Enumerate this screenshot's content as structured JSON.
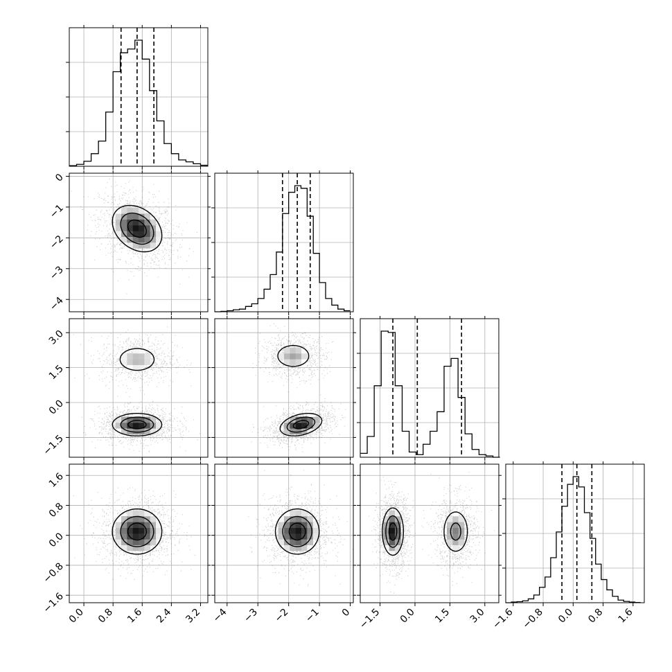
{
  "chart_data": {
    "type": "corner",
    "parameters": [
      {
        "axis_range": [
          -0.4,
          3.4
        ],
        "ticks": [
          0.0,
          0.8,
          1.6,
          2.4,
          3.2
        ],
        "tick_labels": [
          "0.0",
          "0.8",
          "1.6",
          "2.4",
          "3.2"
        ],
        "quantiles": [
          1.02,
          1.46,
          1.92
        ],
        "histogram": {
          "bin_edges": [
            -0.4,
            -0.2,
            0.0,
            0.2,
            0.4,
            0.6,
            0.8,
            1.0,
            1.2,
            1.4,
            1.6,
            1.8,
            2.0,
            2.2,
            2.4,
            2.6,
            2.8,
            3.0,
            3.2,
            3.4
          ],
          "values": [
            0.005,
            0.015,
            0.04,
            0.1,
            0.2,
            0.43,
            0.75,
            0.9,
            0.93,
            1.0,
            0.85,
            0.6,
            0.36,
            0.18,
            0.1,
            0.05,
            0.035,
            0.02,
            0.008
          ]
        }
      },
      {
        "axis_range": [
          -4.4,
          0.1
        ],
        "ticks": [
          -4,
          -3,
          -2,
          -1,
          0
        ],
        "tick_labels": [
          "−4",
          "−3",
          "−2",
          "−1",
          "0"
        ],
        "quantiles": [
          -2.2,
          -1.72,
          -1.3
        ],
        "histogram": {
          "bin_edges": [
            -4.4,
            -4.2,
            -4.0,
            -3.8,
            -3.6,
            -3.4,
            -3.2,
            -3.0,
            -2.8,
            -2.6,
            -2.4,
            -2.2,
            -2.0,
            -1.8,
            -1.6,
            -1.4,
            -1.2,
            -1.0,
            -0.8,
            -0.6,
            -0.4,
            -0.2,
            0.0
          ],
          "values": [
            0.0,
            0.003,
            0.008,
            0.015,
            0.02,
            0.04,
            0.06,
            0.1,
            0.17,
            0.28,
            0.45,
            0.74,
            0.9,
            0.95,
            0.93,
            0.72,
            0.44,
            0.22,
            0.1,
            0.05,
            0.02,
            0.008
          ]
        }
      },
      {
        "axis_range": [
          -2.35,
          3.6
        ],
        "ticks": [
          -1.5,
          0.0,
          1.5,
          3.0
        ],
        "tick_labels": [
          "−1.5",
          "0.0",
          "1.5",
          "3.0"
        ],
        "quantiles": [
          -0.95,
          0.1,
          2.0
        ],
        "histogram": {
          "bin_edges": [
            -2.35,
            -2.05,
            -1.75,
            -1.45,
            -1.15,
            -0.85,
            -0.55,
            -0.25,
            0.05,
            0.35,
            0.65,
            0.95,
            1.25,
            1.55,
            1.85,
            2.15,
            2.45,
            2.75,
            3.05,
            3.35,
            3.65
          ],
          "values": [
            0.03,
            0.16,
            0.55,
            0.97,
            0.96,
            0.55,
            0.2,
            0.04,
            0.02,
            0.1,
            0.2,
            0.35,
            0.7,
            0.76,
            0.46,
            0.18,
            0.06,
            0.02,
            0.01,
            0.0
          ]
        }
      },
      {
        "axis_range": [
          -1.8,
          1.9
        ],
        "ticks": [
          -1.6,
          -0.8,
          0.0,
          0.8,
          1.6
        ],
        "tick_labels": [
          "−1.6",
          "−0.8",
          "0.0",
          "0.8",
          "1.6"
        ],
        "quantiles": [
          -0.3,
          0.1,
          0.5
        ],
        "histogram": {
          "bin_edges": [
            -1.8,
            -1.65,
            -1.5,
            -1.35,
            -1.2,
            -1.05,
            -0.9,
            -0.75,
            -0.6,
            -0.45,
            -0.3,
            -0.15,
            0.0,
            0.15,
            0.3,
            0.45,
            0.6,
            0.75,
            0.9,
            1.05,
            1.2,
            1.35,
            1.5,
            1.65,
            1.8
          ],
          "values": [
            0.0,
            0.005,
            0.008,
            0.015,
            0.03,
            0.06,
            0.12,
            0.2,
            0.35,
            0.55,
            0.75,
            0.92,
            0.98,
            0.9,
            0.7,
            0.5,
            0.3,
            0.18,
            0.1,
            0.05,
            0.02,
            0.01,
            0.005,
            0.002
          ]
        }
      }
    ],
    "joint_blobs": [
      {
        "row": 1,
        "col": 0,
        "centers": [
          {
            "x": 1.46,
            "y": -1.7,
            "sx": 0.45,
            "sy": 0.5,
            "rho": -0.3,
            "peak": 1.0
          }
        ]
      },
      {
        "row": 2,
        "col": 0,
        "centers": [
          {
            "x": 1.46,
            "y": 1.85,
            "sx": 0.45,
            "sy": 0.45,
            "rho": 0.0,
            "peak": 0.55
          },
          {
            "x": 1.46,
            "y": -0.95,
            "sx": 0.45,
            "sy": 0.32,
            "rho": 0.0,
            "peak": 1.0
          }
        ]
      },
      {
        "row": 2,
        "col": 1,
        "centers": [
          {
            "x": -1.85,
            "y": 2.0,
            "sx": 0.45,
            "sy": 0.4,
            "rho": 0.0,
            "peak": 0.6
          },
          {
            "x": -1.6,
            "y": -0.95,
            "sx": 0.45,
            "sy": 0.32,
            "rho": 0.35,
            "peak": 1.0
          }
        ]
      },
      {
        "row": 3,
        "col": 0,
        "centers": [
          {
            "x": 1.46,
            "y": 0.1,
            "sx": 0.45,
            "sy": 0.4,
            "rho": 0.0,
            "peak": 1.0
          }
        ]
      },
      {
        "row": 3,
        "col": 1,
        "centers": [
          {
            "x": -1.72,
            "y": 0.1,
            "sx": 0.47,
            "sy": 0.4,
            "rho": 0.0,
            "peak": 1.0
          }
        ]
      },
      {
        "row": 3,
        "col": 2,
        "centers": [
          {
            "x": -0.95,
            "y": 0.1,
            "sx": 0.3,
            "sy": 0.42,
            "rho": 0.0,
            "peak": 1.0
          },
          {
            "x": 1.75,
            "y": 0.1,
            "sx": 0.4,
            "sy": 0.42,
            "rho": 0.0,
            "peak": 0.7
          }
        ]
      }
    ],
    "grid": true,
    "colors": {
      "line": "#000000",
      "scatter": "#000000",
      "grid": "#b0b0b0"
    }
  }
}
